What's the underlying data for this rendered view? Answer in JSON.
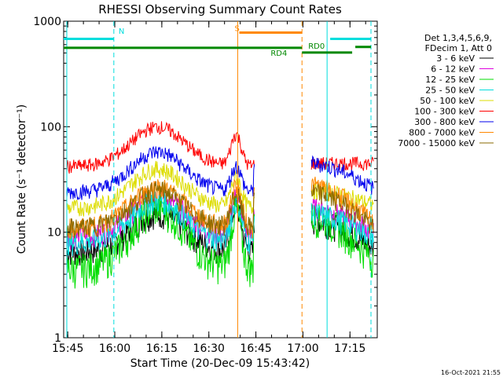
{
  "chart_data": {
    "type": "line",
    "title": "RHESSI Observing Summary Count Rates",
    "xlabel": "Start Time (20-Dec-09 15:43:42)",
    "ylabel": "Count Rate (s⁻¹ detector⁻¹)",
    "yscale": "log",
    "ylim": [
      1,
      1000
    ],
    "xlim_minutes": [
      0,
      100
    ],
    "x_tick_labels": [
      "15:45",
      "16:00",
      "16:15",
      "16:30",
      "16:45",
      "17:00",
      "17:15"
    ],
    "x_tick_minutes": [
      1.3,
      16.3,
      31.3,
      46.3,
      61.3,
      76.3,
      91.3
    ],
    "y_tick_labels": [
      "1",
      "10",
      "100",
      "1000"
    ],
    "y_tick_values": [
      1,
      10,
      100,
      1000
    ],
    "legend_header": [
      "Det 1,3,4,5,6,9,",
      "FDecim 1, Att 0"
    ],
    "legend_placement": "right",
    "series": [
      {
        "name": "3 - 6 keV",
        "color": "#000000",
        "base": 6.5,
        "peak": 15,
        "dip": 7.5,
        "spike": 18,
        "after": 13,
        "end": 7
      },
      {
        "name": "6 - 12 keV",
        "color": "#dd00dd",
        "base": 9,
        "peak": 22,
        "dip": 9.5,
        "spike": 22,
        "after": 17,
        "end": 10
      },
      {
        "name": "12 - 25 keV",
        "color": "#00dd00",
        "base": 4.5,
        "peak": 17,
        "dip": 5.5,
        "spike": 16,
        "after": 14,
        "end": 5.5
      },
      {
        "name": "25 - 50 keV",
        "color": "#00dddd",
        "base": 8,
        "peak": 20,
        "dip": 9,
        "spike": 19,
        "after": 15,
        "end": 9
      },
      {
        "name": "50 - 100 keV",
        "color": "#dddd00",
        "base": 17,
        "peak": 40,
        "dip": 18,
        "spike": 33,
        "after": 25,
        "end": 18
      },
      {
        "name": "100 - 300 keV",
        "color": "#ff0000",
        "base": 42,
        "peak": 100,
        "dip": 45,
        "spike": 85,
        "after": 45,
        "end": 45
      },
      {
        "name": "300 - 800 keV",
        "color": "#0000ee",
        "base": 24,
        "peak": 58,
        "dip": 26,
        "spike": 42,
        "after": 45,
        "end": 26
      },
      {
        "name": "800 - 7000 keV",
        "color": "#ff8800",
        "base": 11,
        "peak": 27,
        "dip": 11,
        "spike": 28,
        "after": 28,
        "end": 12
      },
      {
        "name": "7000 - 15000 keV",
        "color": "#8a6a00",
        "base": 11,
        "peak": 25,
        "dip": 11,
        "spike": 23,
        "after": 24,
        "end": 11
      }
    ],
    "annotations": [
      {
        "text": "N",
        "color": "#00dddd"
      },
      {
        "text": "S",
        "color": "#ff8800"
      },
      {
        "text": "RD0",
        "color": "#008800"
      },
      {
        "text": "RD4",
        "color": "#008800"
      }
    ],
    "flag_bars": [
      {
        "name": "night",
        "color": "#00dddd",
        "segments": [
          [
            0,
            16
          ],
          [
            85,
            98
          ]
        ],
        "level": 680,
        "vline_solid": [
          1,
          84
        ],
        "vline_dashed": [
          16,
          98
        ]
      },
      {
        "name": "saa",
        "color": "#ff8800",
        "segments": [
          [
            56,
            76
          ]
        ],
        "level": 780,
        "vline_solid": [
          55.5
        ],
        "vline_dashed": [
          76
        ]
      },
      {
        "name": "decimation",
        "color": "#008800",
        "segments": [
          [
            0,
            76
          ]
        ],
        "level": 560
      },
      {
        "name": "rd0",
        "color": "#008800",
        "segments": [
          [
            76,
            92
          ]
        ],
        "level": 505
      },
      {
        "name": "rd4",
        "color": "#008800",
        "segments": [
          [
            93,
            98
          ]
        ],
        "level": 570
      }
    ],
    "observation_windows_minutes": [
      [
        1,
        61
      ],
      [
        79,
        99
      ]
    ]
  },
  "footer_timestamp": "16-Oct-2021 21:55"
}
